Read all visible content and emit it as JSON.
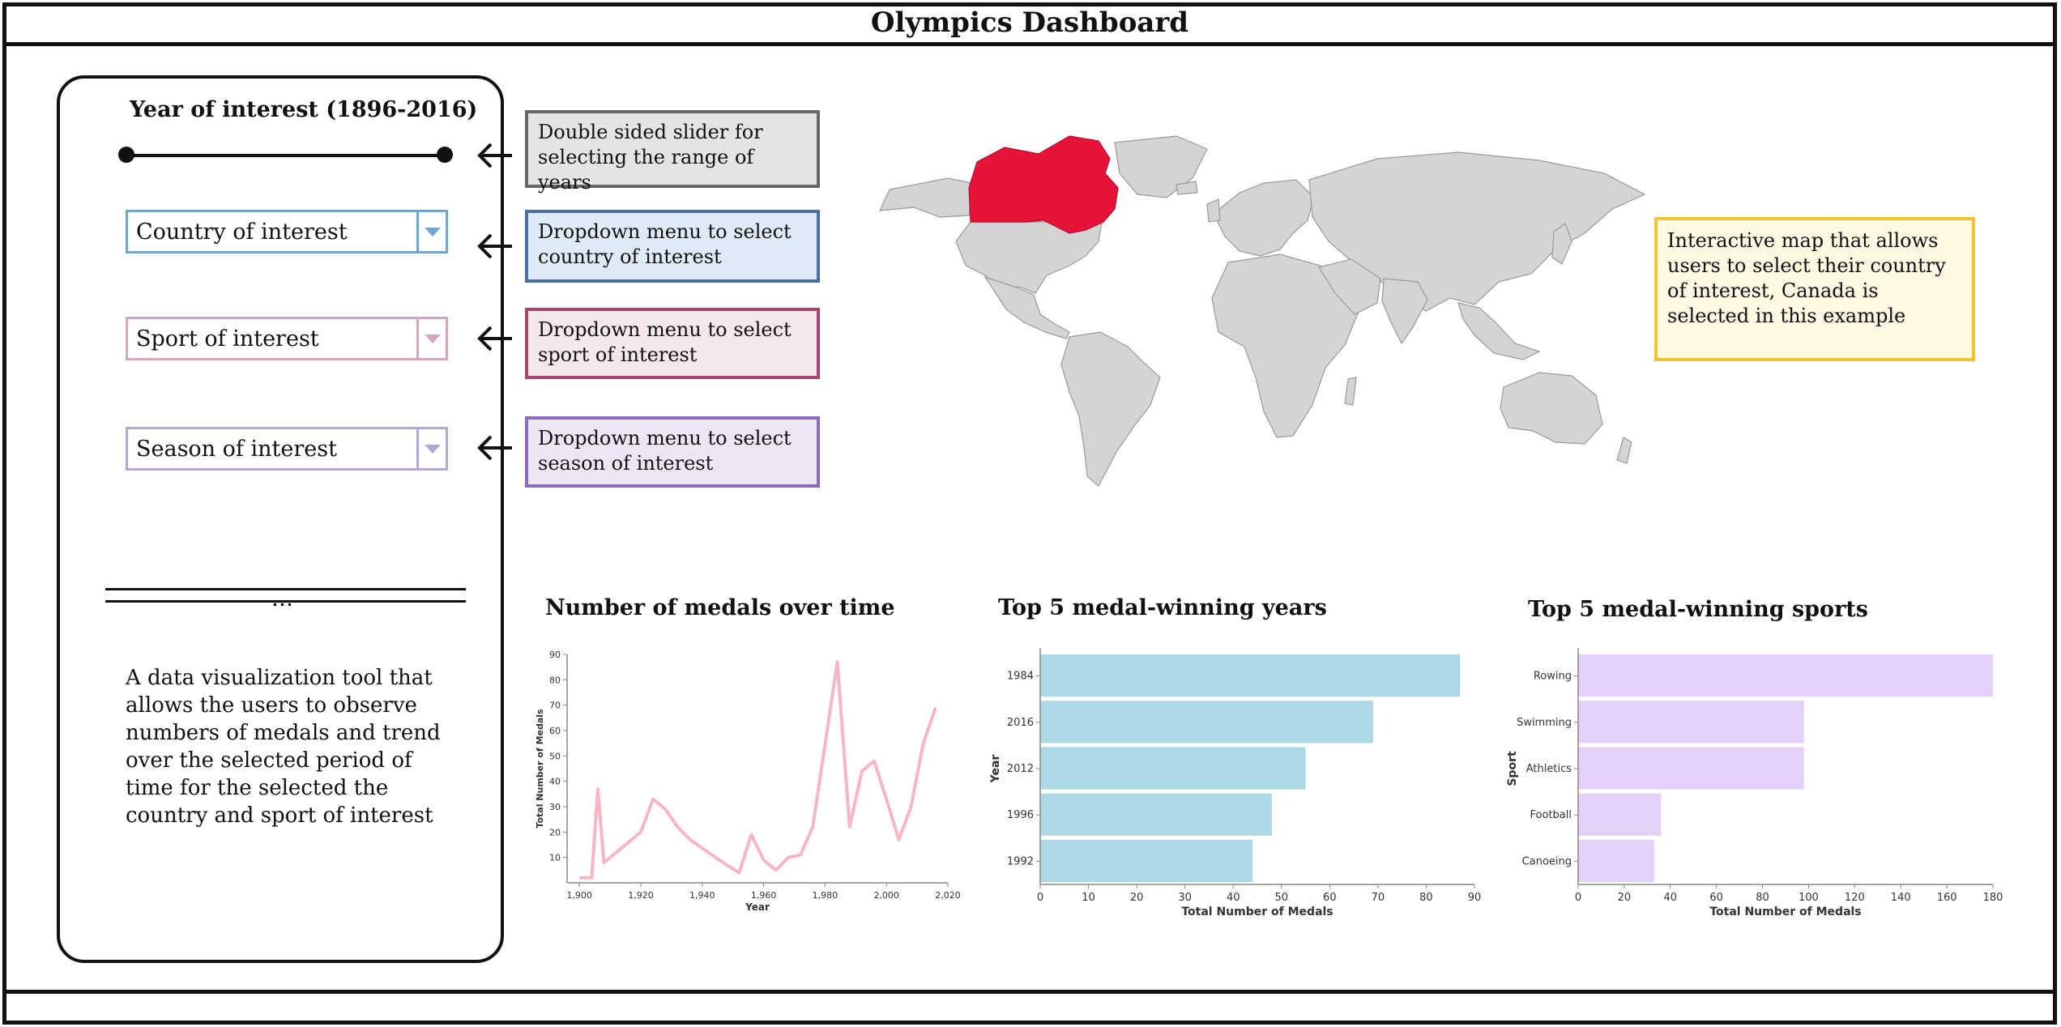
{
  "title": "Olympics Dashboard",
  "sidebar": {
    "year_title": "Year of interest (1896-2016)",
    "dropdowns": [
      {
        "label": "Country of interest",
        "color": "#6fa6d8"
      },
      {
        "label": "Sport of interest",
        "color": "#d6a4bf"
      },
      {
        "label": "Season of interest",
        "color": "#b4a7d6"
      }
    ],
    "dots": "...",
    "description": "A data visualization tool that allows the users to observe numbers of medals and trend over the selected period of time for the selected the country and sport of interest"
  },
  "notes": [
    {
      "text": "Double sided slider for selecting the range of years",
      "border": "#666666",
      "bg": "#e4e4e4"
    },
    {
      "text": "Dropdown menu to select country of interest",
      "border": "#4a6fa5",
      "bg": "#dfeaf8"
    },
    {
      "text": "Dropdown menu to select sport of interest",
      "border": "#a5466f",
      "bg": "#f6e6ee"
    },
    {
      "text": "Dropdown menu to select season of interest",
      "border": "#8a6cbf",
      "bg": "#ece6f4"
    }
  ],
  "map": {
    "note": "Interactive map that allows users to select their country of interest, Canada is selected in this example",
    "selected_country": "Canada",
    "selected_color": "#e8133a",
    "land_color": "#d4d4d4"
  },
  "chart_data": [
    {
      "type": "line",
      "title": "Number of medals over time",
      "xlabel": "Year",
      "ylabel": "Total Number of Medals",
      "color": "#f7b6c2",
      "xlim": [
        1896,
        2020
      ],
      "ylim": [
        0,
        90
      ],
      "x_ticks": [
        "1,900",
        "1,920",
        "1,940",
        "1,960",
        "1,980",
        "2,000",
        "2,020"
      ],
      "y_ticks": [
        "10",
        "20",
        "30",
        "40",
        "50",
        "60",
        "70",
        "80",
        "90"
      ],
      "x": [
        1900,
        1904,
        1906,
        1908,
        1912,
        1920,
        1924,
        1928,
        1932,
        1936,
        1948,
        1952,
        1956,
        1960,
        1964,
        1968,
        1972,
        1976,
        1984,
        1988,
        1992,
        1996,
        2000,
        2004,
        2008,
        2012,
        2016
      ],
      "y": [
        2,
        2,
        37,
        8,
        12,
        20,
        33,
        29,
        22,
        17,
        7,
        4,
        19,
        9,
        5,
        10,
        11,
        22,
        87,
        22,
        44,
        48,
        33,
        17,
        30,
        55,
        69
      ]
    },
    {
      "type": "bar",
      "title": "Top 5 medal-winning years",
      "xlabel": "Total Number of Medals",
      "ylabel": "Year",
      "color": "#add8e6",
      "xlim": [
        0,
        90
      ],
      "x_ticks": [
        "0",
        "10",
        "20",
        "30",
        "40",
        "50",
        "60",
        "70",
        "80",
        "90"
      ],
      "categories": [
        "1984",
        "2016",
        "2012",
        "1996",
        "1992"
      ],
      "values": [
        87,
        69,
        55,
        48,
        44
      ]
    },
    {
      "type": "bar",
      "title": "Top 5 medal-winning sports",
      "xlabel": "Total Number of Medals",
      "ylabel": "Sport",
      "color": "#e4d1f7",
      "xlim": [
        0,
        180
      ],
      "x_ticks": [
        "0",
        "20",
        "40",
        "60",
        "80",
        "100",
        "120",
        "140",
        "160",
        "180"
      ],
      "categories": [
        "Rowing",
        "Swimming",
        "Athletics",
        "Football",
        "Canoeing"
      ],
      "values": [
        180,
        98,
        98,
        36,
        33
      ]
    }
  ]
}
